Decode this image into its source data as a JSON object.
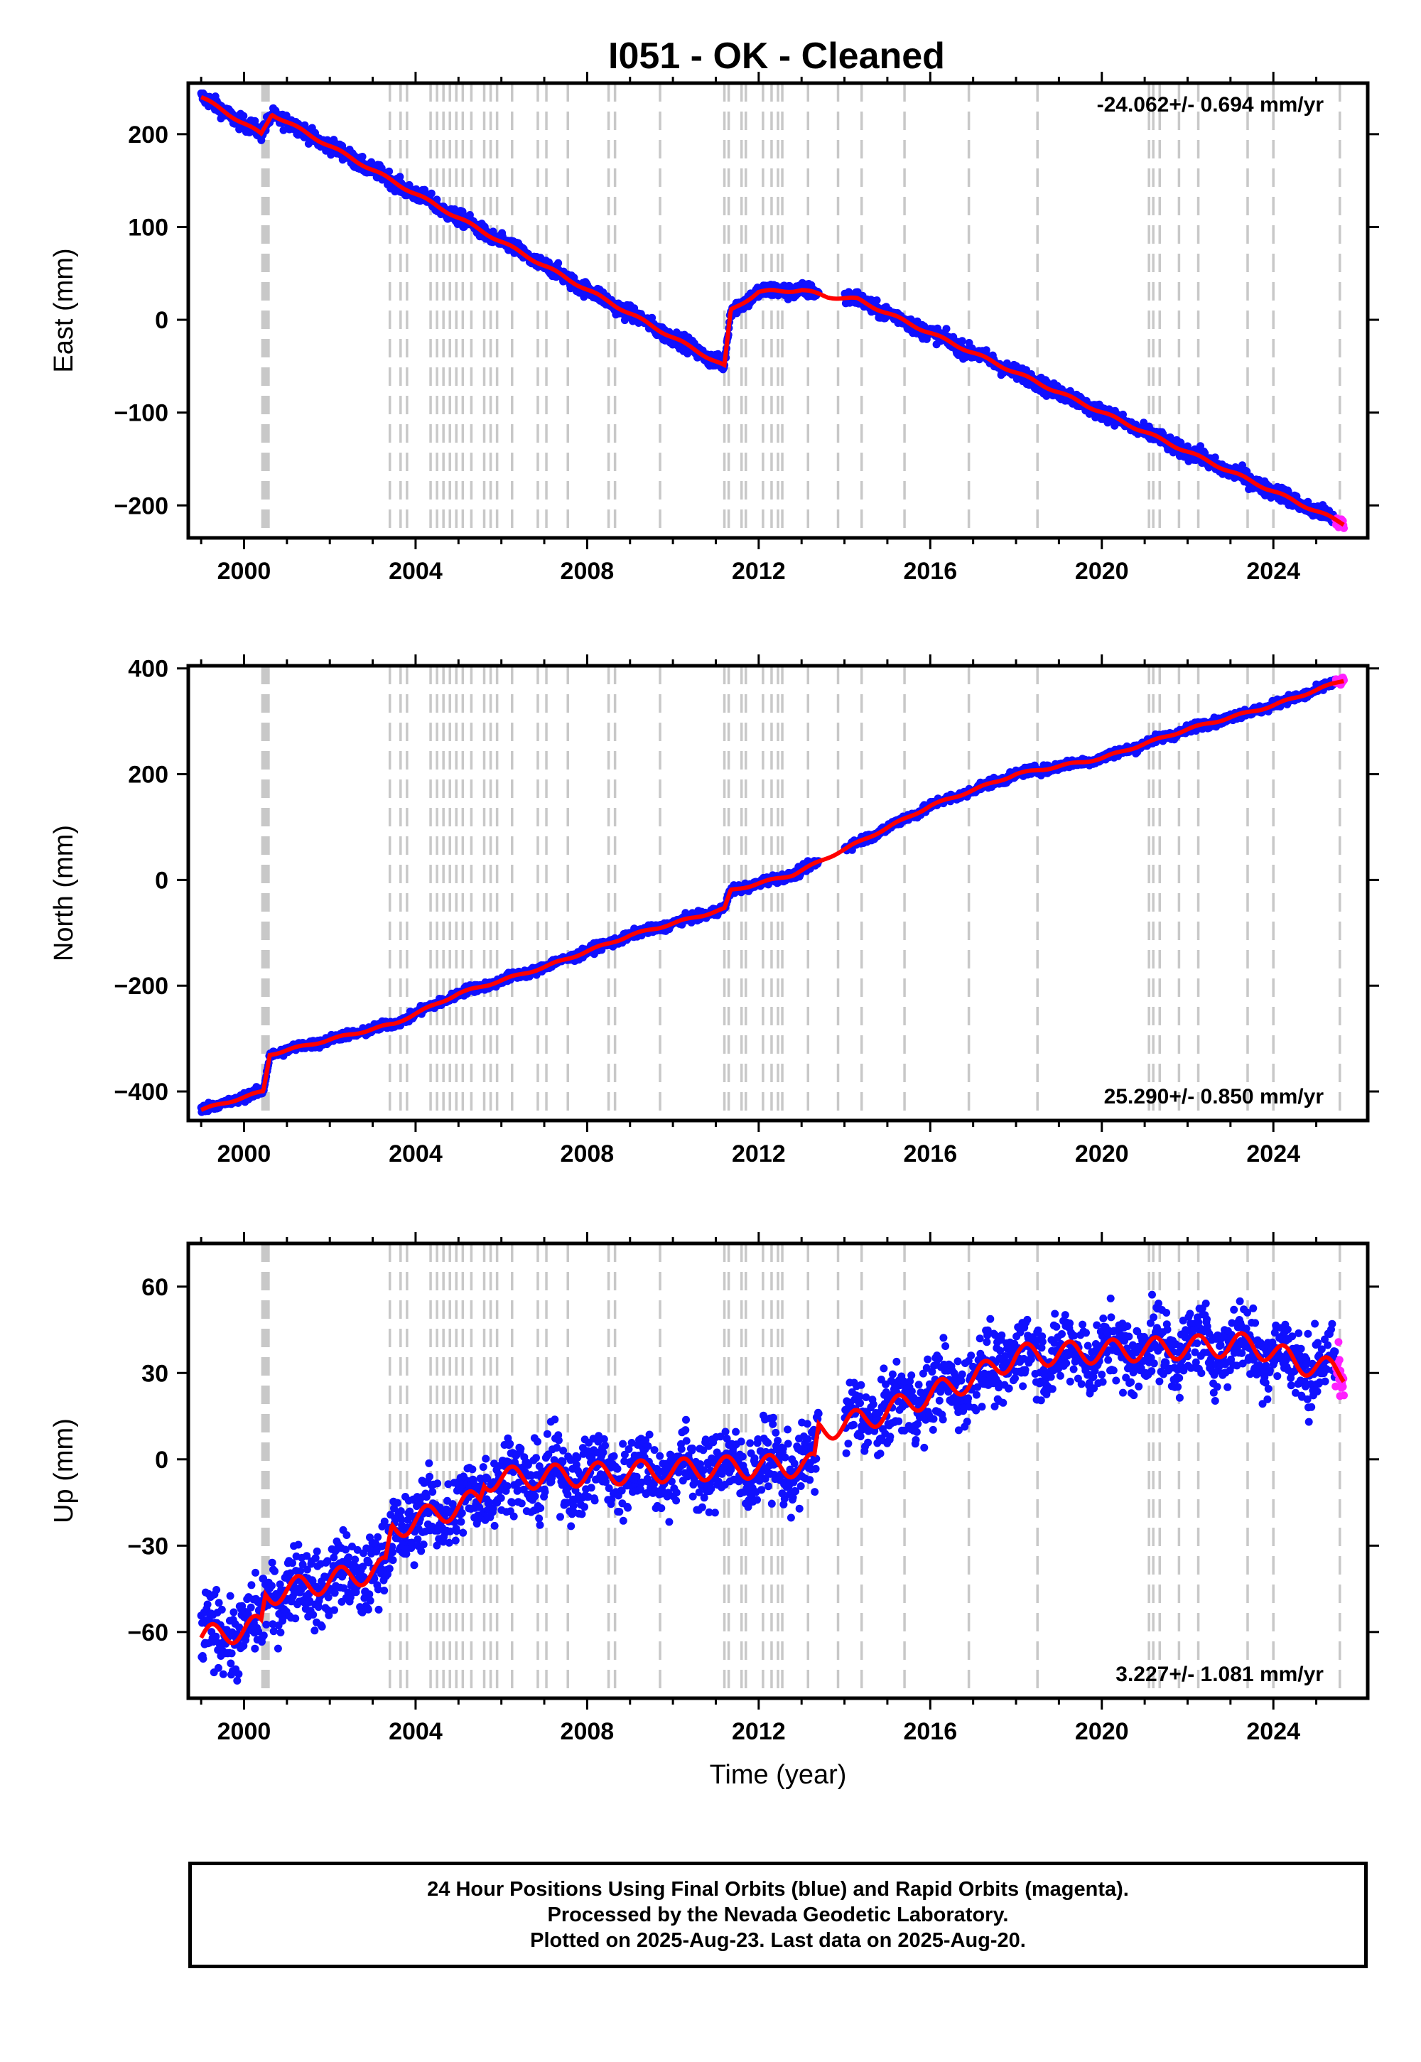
{
  "title": "I051  - OK - Cleaned",
  "colors": {
    "final_orbits": "#1010ff",
    "rapid_orbits": "#ff20ff",
    "model": "#ff0000",
    "event_lines": "#c8c8c8",
    "frame": "#000000"
  },
  "caption": {
    "line1": "24 Hour Positions Using Final Orbits (blue) and Rapid Orbits (magenta).",
    "line2": "Processed by the Nevada Geodetic Laboratory.",
    "line3": "Plotted on 2025-Aug-23. Last data on 2025-Aug-20."
  },
  "chart_data": [
    {
      "type": "scatter",
      "panel": "east",
      "ylabel": "East (mm)",
      "xlabel": "",
      "xlim": [
        1998.7,
        2026.2
      ],
      "ylim": [
        -235,
        255
      ],
      "xticks": [
        2000,
        2004,
        2008,
        2012,
        2016,
        2020,
        2024
      ],
      "yticks": [
        200,
        100,
        0,
        -100,
        -200
      ],
      "ytick_labels": [
        "200",
        "100",
        "0",
        "−100",
        "−200"
      ],
      "rate": "-24.062+/- 0.694 mm/yr",
      "rate_position": "top-right",
      "event_lines": [
        2000.45,
        2000.5,
        2000.55,
        2003.4,
        2003.65,
        2003.8,
        2004.35,
        2004.5,
        2004.65,
        2004.8,
        2004.95,
        2005.1,
        2005.3,
        2005.6,
        2005.75,
        2005.9,
        2006.25,
        2006.85,
        2007.05,
        2007.55,
        2008.5,
        2008.65,
        2009.7,
        2011.2,
        2011.3,
        2011.6,
        2011.7,
        2012.1,
        2012.3,
        2012.45,
        2012.55,
        2013.15,
        2013.85,
        2014.4,
        2015.4,
        2016.9,
        2018.5,
        2021.1,
        2021.2,
        2021.35,
        2021.8,
        2022.25,
        2023.4,
        2024.0,
        2025.55
      ],
      "knots": [
        [
          1999.0,
          240
        ],
        [
          2000.4,
          200
        ],
        [
          2000.65,
          222
        ],
        [
          2011.2,
          -50
        ],
        [
          2011.35,
          10
        ],
        [
          2012.0,
          30
        ],
        [
          2013.0,
          32
        ],
        [
          2013.6,
          25
        ],
        [
          2014.3,
          22
        ],
        [
          2025.65,
          -220
        ]
      ],
      "noise": 4.0,
      "seasonal": 1.5,
      "series": [
        {
          "name": "Final Orbits"
        },
        {
          "name": "Rapid Orbits"
        }
      ]
    },
    {
      "type": "scatter",
      "panel": "north",
      "ylabel": "North (mm)",
      "xlabel": "",
      "xlim": [
        1998.7,
        2026.2
      ],
      "ylim": [
        -455,
        405
      ],
      "xticks": [
        2000,
        2004,
        2008,
        2012,
        2016,
        2020,
        2024
      ],
      "yticks": [
        400,
        200,
        0,
        -200,
        -400
      ],
      "ytick_labels": [
        "400",
        "200",
        "0",
        "−200",
        "−400"
      ],
      "rate": "25.290+/- 0.850 mm/yr",
      "rate_position": "bottom-right",
      "event_lines": [
        2000.45,
        2000.5,
        2000.55,
        2003.4,
        2003.65,
        2003.8,
        2004.35,
        2004.5,
        2004.65,
        2004.8,
        2004.95,
        2005.1,
        2005.3,
        2005.6,
        2005.75,
        2005.9,
        2006.25,
        2006.85,
        2007.05,
        2007.55,
        2008.5,
        2008.65,
        2009.7,
        2011.2,
        2011.3,
        2011.6,
        2011.7,
        2012.1,
        2012.3,
        2012.45,
        2012.55,
        2013.15,
        2013.85,
        2014.4,
        2015.4,
        2016.9,
        2018.5,
        2021.1,
        2021.2,
        2021.35,
        2021.8,
        2022.25,
        2023.4,
        2024.0,
        2025.55
      ],
      "knots": [
        [
          1999.0,
          -435
        ],
        [
          2000.45,
          -400
        ],
        [
          2000.6,
          -330
        ],
        [
          2003.5,
          -272
        ],
        [
          2005.0,
          -215
        ],
        [
          2007.0,
          -165
        ],
        [
          2009.0,
          -105
        ],
        [
          2011.2,
          -55
        ],
        [
          2011.35,
          -20
        ],
        [
          2012.8,
          10
        ],
        [
          2014.3,
          70
        ],
        [
          2016.0,
          140
        ],
        [
          2018.0,
          200
        ],
        [
          2020.0,
          230
        ],
        [
          2022.0,
          285
        ],
        [
          2024.0,
          330
        ],
        [
          2025.65,
          378
        ]
      ],
      "noise": 4.0,
      "seasonal": 2.0,
      "series": [
        {
          "name": "Final Orbits"
        },
        {
          "name": "Rapid Orbits"
        }
      ]
    },
    {
      "type": "scatter",
      "panel": "up",
      "ylabel": "Up (mm)",
      "xlabel": "Time (year)",
      "xlim": [
        1998.7,
        2026.2
      ],
      "ylim": [
        -83,
        75
      ],
      "xticks": [
        2000,
        2004,
        2008,
        2012,
        2016,
        2020,
        2024
      ],
      "yticks": [
        60,
        30,
        0,
        -30,
        -60
      ],
      "ytick_labels": [
        "60",
        "30",
        "0",
        "−30",
        "−60"
      ],
      "rate": "3.227+/- 1.081 mm/yr",
      "rate_position": "bottom-right",
      "event_lines": [
        2000.45,
        2000.5,
        2000.55,
        2003.4,
        2003.65,
        2003.8,
        2004.35,
        2004.5,
        2004.65,
        2004.8,
        2004.95,
        2005.1,
        2005.3,
        2005.6,
        2005.75,
        2005.9,
        2006.25,
        2006.85,
        2007.05,
        2007.55,
        2008.5,
        2008.65,
        2009.7,
        2011.2,
        2011.3,
        2011.6,
        2011.7,
        2012.1,
        2012.3,
        2012.45,
        2012.55,
        2013.15,
        2013.85,
        2014.4,
        2015.4,
        2016.9,
        2018.5,
        2021.1,
        2021.2,
        2021.35,
        2021.8,
        2022.25,
        2023.4,
        2024.0,
        2025.55
      ],
      "knots": [
        [
          1999.0,
          -62
        ],
        [
          2000.4,
          -58
        ],
        [
          2000.5,
          -47
        ],
        [
          2003.3,
          -38
        ],
        [
          2003.45,
          -24
        ],
        [
          2005.5,
          -14
        ],
        [
          2005.6,
          -7
        ],
        [
          2007.0,
          -6
        ],
        [
          2011.2,
          -3
        ],
        [
          2013.3,
          -2
        ],
        [
          2013.4,
          10
        ],
        [
          2014.5,
          14
        ],
        [
          2017.0,
          28
        ],
        [
          2018.0,
          36
        ],
        [
          2023.5,
          40
        ],
        [
          2024.5,
          34
        ],
        [
          2025.65,
          30
        ]
      ],
      "noise": 6.5,
      "seasonal": 4.0,
      "gap": [
        2013.4,
        2014.0
      ],
      "series": [
        {
          "name": "Final Orbits"
        },
        {
          "name": "Rapid Orbits"
        }
      ]
    }
  ]
}
